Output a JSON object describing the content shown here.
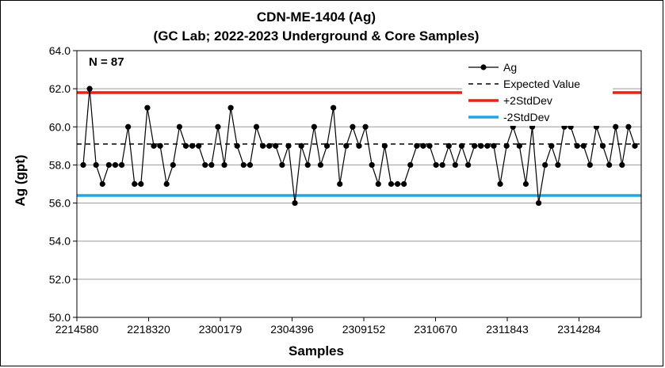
{
  "chart_data": {
    "type": "line",
    "title": "CDN-ME-1404 (Ag)",
    "subtitle": "(GC Lab; 2022-2023 Underground & Core Samples)",
    "xlabel": "Samples",
    "ylabel": "Ag (gpt)",
    "annotation": "N = 87",
    "ylim": [
      50.0,
      64.0
    ],
    "ytick_labels": [
      "50.0",
      "52.0",
      "54.0",
      "56.0",
      "58.0",
      "60.0",
      "62.0",
      "64.0"
    ],
    "xtick_labels": [
      "2214580",
      "2218320",
      "2300179",
      "2304396",
      "2309152",
      "2310670",
      "2311843",
      "2314284"
    ],
    "grid": true,
    "legend_position": "top-right",
    "series": [
      {
        "name": "Ag",
        "color": "#000000",
        "values": [
          58,
          62,
          58,
          57,
          58,
          58,
          58,
          60,
          57,
          57,
          61,
          59,
          59,
          57,
          58,
          60,
          59,
          59,
          59,
          58,
          58,
          60,
          58,
          61,
          59,
          58,
          58,
          60,
          59,
          59,
          59,
          58,
          59,
          56,
          59,
          58,
          60,
          58,
          59,
          61,
          57,
          59,
          60,
          59,
          60,
          58,
          57,
          59,
          57,
          57,
          57,
          58,
          59,
          59,
          59,
          58,
          58,
          59,
          58,
          59,
          58,
          59,
          59,
          59,
          59,
          57,
          59,
          60,
          59,
          57,
          60,
          56,
          58,
          59,
          58,
          60,
          60,
          59,
          59,
          58,
          60,
          59,
          58,
          60,
          58,
          60,
          59
        ]
      },
      {
        "name": "Expected Value",
        "color": "#000000",
        "value": 59.1
      },
      {
        "name": "+2StdDev",
        "color": "#e8201a",
        "value": 61.8
      },
      {
        "name": "-2StdDev",
        "color": "#1ea8e0",
        "value": 56.4
      }
    ]
  }
}
